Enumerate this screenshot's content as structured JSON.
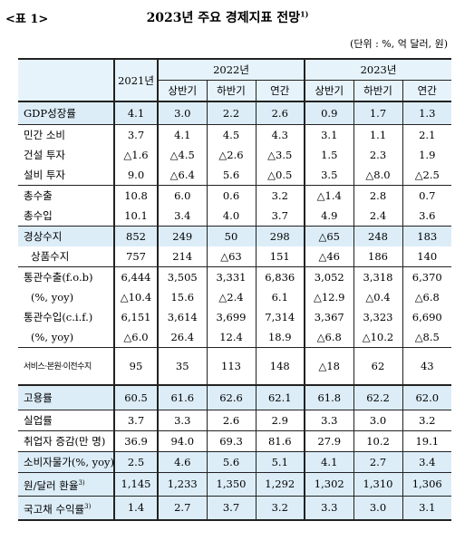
{
  "header": {
    "table_label": "<표 1>",
    "title": "2023년 주요 경제지표 전망",
    "title_sup": "1)",
    "unit": "(단위 : %, 억 달러, 원)"
  },
  "columns": {
    "y2021": "2021년",
    "y2022": "2022년",
    "y2023": "2023년",
    "h1": "상반기",
    "h2": "하반기",
    "annual": "연간"
  },
  "rows": [
    {
      "label": "GDP성장률",
      "v": [
        "4.1",
        "3.0",
        "2.2",
        "2.6",
        "0.9",
        "1.7",
        "1.3"
      ]
    },
    {
      "label": "민간 소비",
      "v": [
        "3.7",
        "4.1",
        "4.5",
        "4.3",
        "3.1",
        "1.1",
        "2.1"
      ]
    },
    {
      "label": "건설 투자",
      "v": [
        "△1.6",
        "△4.5",
        "△2.6",
        "△3.5",
        "1.5",
        "2.3",
        "1.9"
      ]
    },
    {
      "label": "설비 투자",
      "v": [
        "9.0",
        "△6.4",
        "5.6",
        "△0.5",
        "3.5",
        "△8.0",
        "△2.5"
      ]
    },
    {
      "label": "총수출",
      "v": [
        "10.8",
        "6.0",
        "0.6",
        "3.2",
        "△1.4",
        "2.8",
        "0.7"
      ]
    },
    {
      "label": "총수입",
      "v": [
        "10.1",
        "3.4",
        "4.0",
        "3.7",
        "4.9",
        "2.4",
        "3.6"
      ]
    },
    {
      "label": "경상수지",
      "v": [
        "852",
        "249",
        "50",
        "298",
        "△65",
        "248",
        "183"
      ]
    },
    {
      "label": "상품수지",
      "v": [
        "757",
        "214",
        "△63",
        "151",
        "△46",
        "186",
        "140"
      ]
    },
    {
      "label": "통관수출(f.o.b)",
      "v": [
        "6,444",
        "3,505",
        "3,331",
        "6,836",
        "3,052",
        "3,318",
        "6,370"
      ]
    },
    {
      "label": "(%, yoy)",
      "v": [
        "△10.4",
        "15.6",
        "△2.4",
        "6.1",
        "△12.9",
        "△0.4",
        "△6.8"
      ]
    },
    {
      "label": "통관수입(c.i.f.)",
      "v": [
        "6,151",
        "3,614",
        "3,699",
        "7,314",
        "3,367",
        "3,323",
        "6,690"
      ]
    },
    {
      "label": "(%, yoy)",
      "v": [
        "△6.0",
        "26.4",
        "12.4",
        "18.9",
        "△6.8",
        "△10.2",
        "△8.5"
      ]
    },
    {
      "label": "서비스·본원·이전수지",
      "v": [
        "95",
        "35",
        "113",
        "148",
        "△18",
        "62",
        "43"
      ]
    },
    {
      "label": "고용률",
      "v": [
        "60.5",
        "61.6",
        "62.6",
        "62.1",
        "61.8",
        "62.2",
        "62.0"
      ]
    },
    {
      "label": "실업률",
      "v": [
        "3.7",
        "3.3",
        "2.6",
        "2.9",
        "3.3",
        "3.0",
        "3.2"
      ]
    },
    {
      "label": "취업자 증감(만 명)",
      "v": [
        "36.9",
        "94.0",
        "69.3",
        "81.6",
        "27.9",
        "10.2",
        "19.1"
      ]
    },
    {
      "label": "소비자물가(%, yoy)",
      "v": [
        "2.5",
        "4.6",
        "5.6",
        "5.1",
        "4.1",
        "2.7",
        "3.4"
      ]
    },
    {
      "label": "원/달러 환율",
      "sup": "3)",
      "v": [
        "1,145",
        "1,233",
        "1,350",
        "1,292",
        "1,302",
        "1,310",
        "1,306"
      ]
    },
    {
      "label": "국고채 수익률",
      "sup": "3)",
      "v": [
        "1.4",
        "2.7",
        "3.7",
        "3.2",
        "3.3",
        "3.0",
        "3.1"
      ]
    }
  ]
}
